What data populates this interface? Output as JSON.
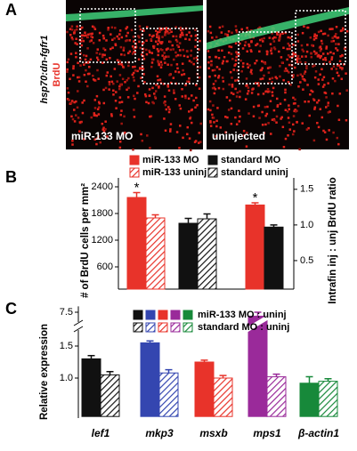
{
  "panel_a": {
    "label": "A",
    "construct": "hsp70:dn-fgfr1",
    "stain": "BrdU",
    "images": [
      "miR-133 MO",
      "uninjected"
    ]
  },
  "chart_data": [
    {
      "type": "bar",
      "panel_label": "B",
      "y_label": "# of BrdU cells per mm²",
      "y2_label": "Intrafin inj : unj BrdU ratio",
      "ylim": [
        100,
        2600
      ],
      "yticks": [
        600,
        1200,
        1800,
        2400
      ],
      "y2lim": [
        0.1,
        1.66
      ],
      "y2ticks": [
        0.5,
        {
          "value": 1,
          "label": "1.0"
        },
        1.5
      ],
      "series": [
        {
          "name": "miR-133 MO",
          "color": "#e8332a",
          "hatch": false,
          "values": [
            2160,
            null,
            null
          ],
          "errors": [
            110,
            null,
            null
          ],
          "significance": [
            "*",
            null,
            null
          ]
        },
        {
          "name": "miR-133 uninj",
          "color": "#e8332a",
          "hatch": true,
          "values": [
            1700,
            null,
            null
          ],
          "errors": [
            70,
            null,
            null
          ]
        },
        {
          "name": "standard MO",
          "color": "#111111",
          "hatch": false,
          "values": [
            null,
            1580,
            null
          ],
          "errors": [
            null,
            110,
            null
          ]
        },
        {
          "name": "standard uninj",
          "color": "#111111",
          "hatch": true,
          "values": [
            null,
            1680,
            null
          ],
          "errors": [
            null,
            110,
            null
          ]
        },
        {
          "color": "#e8332a",
          "hatch": false,
          "axis": "y2",
          "values": [
            null,
            null,
            1.28
          ],
          "errors": [
            null,
            null,
            0.03
          ],
          "significance": [
            null,
            null,
            "*"
          ]
        },
        {
          "color": "#111111",
          "hatch": false,
          "axis": "y2",
          "values": [
            null,
            null,
            0.97
          ],
          "errors": [
            null,
            null,
            0.03
          ]
        }
      ]
    },
    {
      "type": "bar",
      "panel_label": "C",
      "y_label": "Relative expression",
      "categories": [
        "lef1",
        "mkp3",
        "msxb",
        "mps1",
        "β-actin1"
      ],
      "colors": [
        "#111111",
        "#3446b0",
        "#e8332a",
        "#9a2a9a",
        "#17893a"
      ],
      "ylim": [
        0.4,
        7.8
      ],
      "y_break": [
        1.75,
        7.0
      ],
      "yticks": [
        {
          "value": 1,
          "label": "1.0"
        },
        1.5,
        7.5
      ],
      "series": [
        {
          "name": "miR-133 MO : uninj",
          "hatch": false,
          "values": [
            1.3,
            1.55,
            1.25,
            7.3,
            0.92
          ],
          "errors": [
            0.05,
            0.03,
            0.03,
            0.2,
            0.1
          ]
        },
        {
          "name": "standard MO : uninj",
          "hatch": true,
          "values": [
            1.05,
            1.08,
            1.0,
            1.02,
            0.95
          ],
          "errors": [
            0.05,
            0.05,
            0.04,
            0.04,
            0.04
          ]
        }
      ]
    }
  ]
}
